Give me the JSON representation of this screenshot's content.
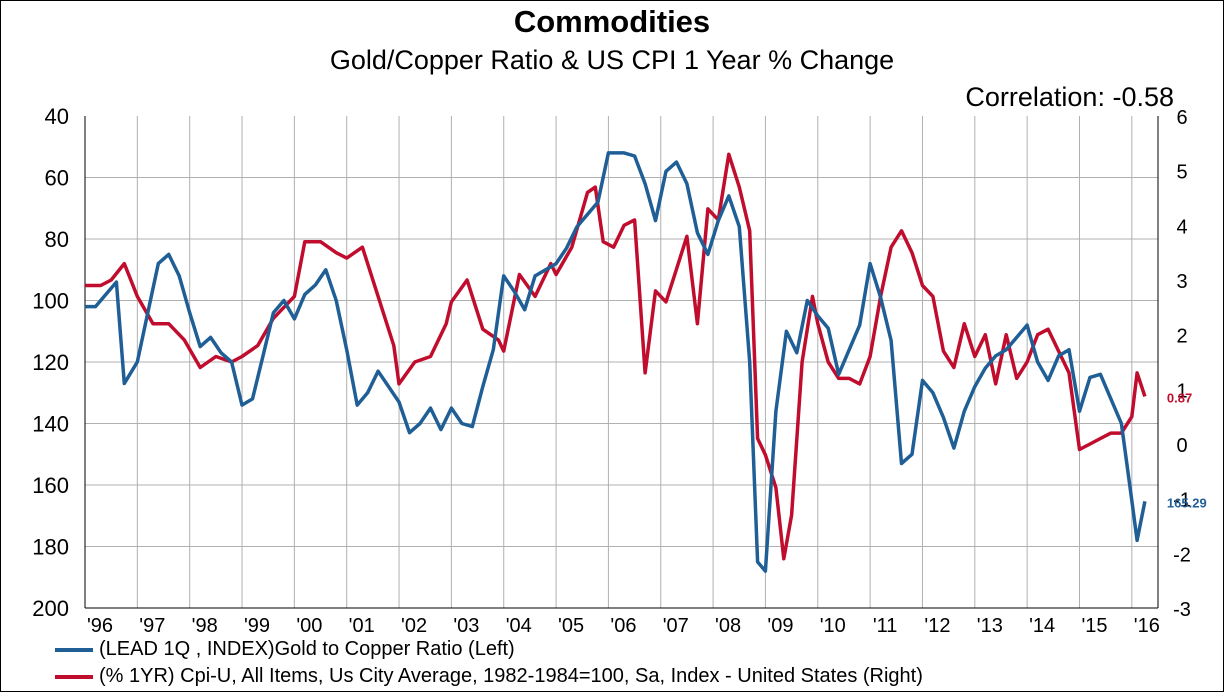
{
  "title": "Commodities",
  "subtitle": "Gold/Copper Ratio & US CPI 1 Year % Change",
  "correlation_label": "Correlation: -0.58",
  "colors": {
    "gold_copper": "#1f5f96",
    "cpi": "#c00d2e",
    "grid": "#b0b0b0"
  },
  "chart_data": {
    "type": "line",
    "title": "Commodities",
    "subtitle": "Gold/Copper Ratio & US CPI 1 Year % Change",
    "annotation": "Correlation: -0.58",
    "x_range": [
      1996,
      2016.5
    ],
    "x_ticks": [
      "'96",
      "'97",
      "'98",
      "'99",
      "'00",
      "'01",
      "'02",
      "'03",
      "'04",
      "'05",
      "'06",
      "'07",
      "'08",
      "'09",
      "'10",
      "'11",
      "'12",
      "'13",
      "'14",
      "'15",
      "'16"
    ],
    "y_left": {
      "ylim": [
        40,
        200
      ],
      "inverted": true,
      "ticks": [
        "40",
        "60",
        "80",
        "100",
        "120",
        "140",
        "160",
        "180",
        "200"
      ]
    },
    "y_right": {
      "ylim": [
        -3,
        6
      ],
      "ticks": [
        "6",
        "5",
        "4",
        "3",
        "2",
        "1",
        "0",
        "-1",
        "-2",
        "-3"
      ]
    },
    "grid": true,
    "legend_position": "bottom",
    "series": [
      {
        "name": "(LEAD 1Q , INDEX)Gold to Copper Ratio  (Left)",
        "axis": "left",
        "end_label": "165.29",
        "x": [
          1996.0,
          1996.2,
          1996.4,
          1996.6,
          1996.75,
          1997.0,
          1997.2,
          1997.4,
          1997.6,
          1997.8,
          1998.0,
          1998.2,
          1998.4,
          1998.6,
          1998.8,
          1999.0,
          1999.2,
          1999.4,
          1999.6,
          1999.8,
          2000.0,
          2000.2,
          2000.4,
          2000.6,
          2000.8,
          2001.0,
          2001.2,
          2001.4,
          2001.6,
          2001.8,
          2002.0,
          2002.2,
          2002.4,
          2002.6,
          2002.8,
          2003.0,
          2003.2,
          2003.4,
          2003.6,
          2003.8,
          2004.0,
          2004.2,
          2004.4,
          2004.6,
          2004.8,
          2005.0,
          2005.2,
          2005.4,
          2005.6,
          2005.8,
          2006.0,
          2006.15,
          2006.3,
          2006.5,
          2006.7,
          2006.9,
          2007.1,
          2007.3,
          2007.5,
          2007.7,
          2007.9,
          2008.1,
          2008.3,
          2008.5,
          2008.7,
          2008.85,
          2009.0,
          2009.2,
          2009.4,
          2009.6,
          2009.8,
          2010.0,
          2010.2,
          2010.4,
          2010.6,
          2010.8,
          2011.0,
          2011.2,
          2011.4,
          2011.6,
          2011.8,
          2012.0,
          2012.2,
          2012.4,
          2012.6,
          2012.8,
          2013.0,
          2013.2,
          2013.4,
          2013.6,
          2013.8,
          2014.0,
          2014.2,
          2014.4,
          2014.6,
          2014.8,
          2015.0,
          2015.2,
          2015.4,
          2015.6,
          2015.8,
          2016.0,
          2016.1,
          2016.25
        ],
        "y": [
          102,
          102,
          98,
          94,
          127,
          120,
          104,
          88,
          85,
          92,
          104,
          115,
          112,
          117,
          120,
          134,
          132,
          118,
          104,
          100,
          106,
          98,
          95,
          90,
          100,
          116,
          134,
          130,
          123,
          128,
          133,
          143,
          140,
          135,
          142,
          135,
          140,
          141,
          128,
          116,
          92,
          97,
          103,
          92,
          90,
          88,
          83,
          76,
          72,
          68,
          52,
          52,
          52,
          53,
          62,
          74,
          58,
          55,
          62,
          78,
          85,
          74,
          66,
          76,
          120,
          185,
          188,
          136,
          110,
          117,
          100,
          105,
          109,
          124,
          116,
          108,
          88,
          99,
          113,
          153,
          150,
          126,
          130,
          138,
          148,
          136,
          128,
          122,
          118,
          116,
          112,
          108,
          120,
          126,
          118,
          116,
          136,
          125,
          124,
          132,
          140,
          165,
          178,
          165.29
        ]
      },
      {
        "name": "(% 1YR) Cpi-U, All Items, Us City Average, 1982-1984=100, Sa, Index - United States  (Right)",
        "axis": "right",
        "end_label": "0.87",
        "x": [
          1996.0,
          1996.3,
          1996.5,
          1996.75,
          1997.0,
          1997.3,
          1997.6,
          1997.9,
          1998.2,
          1998.5,
          1998.8,
          1999.0,
          1999.3,
          1999.6,
          1999.9,
          2000.0,
          2000.2,
          2000.5,
          2000.8,
          2001.0,
          2001.3,
          2001.6,
          2001.9,
          2002.0,
          2002.3,
          2002.6,
          2002.9,
          2003.0,
          2003.3,
          2003.6,
          2003.9,
          2004.0,
          2004.3,
          2004.6,
          2004.9,
          2005.0,
          2005.3,
          2005.6,
          2005.75,
          2005.9,
          2006.1,
          2006.3,
          2006.5,
          2006.7,
          2006.9,
          2007.1,
          2007.3,
          2007.5,
          2007.7,
          2007.9,
          2008.1,
          2008.3,
          2008.5,
          2008.7,
          2008.85,
          2009.0,
          2009.2,
          2009.35,
          2009.5,
          2009.7,
          2009.9,
          2010.0,
          2010.2,
          2010.4,
          2010.6,
          2010.8,
          2011.0,
          2011.2,
          2011.4,
          2011.6,
          2011.8,
          2012.0,
          2012.2,
          2012.4,
          2012.6,
          2012.8,
          2013.0,
          2013.2,
          2013.4,
          2013.6,
          2013.8,
          2014.0,
          2014.2,
          2014.4,
          2014.6,
          2014.8,
          2015.0,
          2015.2,
          2015.4,
          2015.6,
          2015.8,
          2016.0,
          2016.1,
          2016.25
        ],
        "y": [
          2.9,
          2.9,
          3.0,
          3.3,
          2.7,
          2.2,
          2.2,
          1.9,
          1.4,
          1.6,
          1.5,
          1.6,
          1.8,
          2.3,
          2.6,
          2.7,
          3.7,
          3.7,
          3.5,
          3.4,
          3.6,
          2.7,
          1.8,
          1.1,
          1.5,
          1.6,
          2.2,
          2.6,
          3.0,
          2.1,
          1.9,
          1.7,
          3.1,
          2.7,
          3.3,
          3.1,
          3.6,
          4.6,
          4.7,
          3.7,
          3.6,
          4.0,
          4.1,
          1.3,
          2.8,
          2.6,
          3.2,
          3.8,
          2.2,
          4.3,
          4.1,
          5.3,
          4.7,
          3.9,
          0.1,
          -0.2,
          -0.8,
          -2.1,
          -1.3,
          1.5,
          2.7,
          2.2,
          1.5,
          1.2,
          1.2,
          1.1,
          1.6,
          2.7,
          3.6,
          3.9,
          3.5,
          2.9,
          2.7,
          1.7,
          1.4,
          2.2,
          1.6,
          2.0,
          1.1,
          2.0,
          1.2,
          1.5,
          2.0,
          2.1,
          1.7,
          1.3,
          -0.1,
          0.0,
          0.1,
          0.2,
          0.2,
          0.5,
          1.3,
          0.87
        ]
      }
    ]
  }
}
